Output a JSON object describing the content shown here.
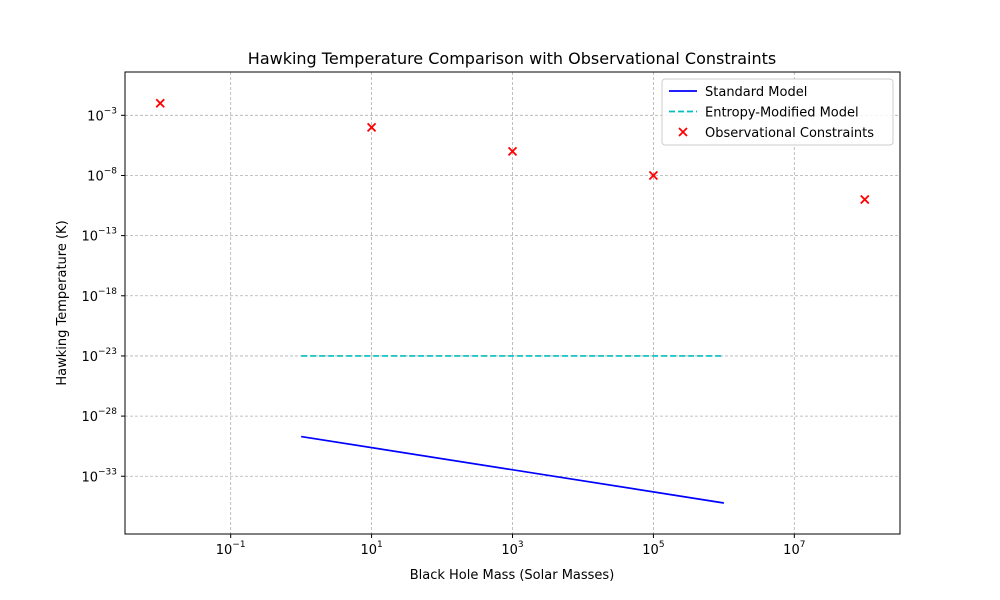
{
  "chart_data": {
    "type": "line",
    "title": "Hawking Temperature Comparison with Observational Constraints",
    "xlabel": "Black Hole Mass (Solar Masses)",
    "ylabel": "Hawking Temperature (K)",
    "x_scale": "log",
    "y_scale": "log",
    "xlim_log10": [
      -2.5,
      8.5
    ],
    "ylim_log10": [
      -37.8,
      0.6
    ],
    "x_ticks": [
      {
        "base": "10",
        "exp": "−1",
        "log": -1
      },
      {
        "base": "10",
        "exp": "1",
        "log": 1
      },
      {
        "base": "10",
        "exp": "3",
        "log": 3
      },
      {
        "base": "10",
        "exp": "5",
        "log": 5
      },
      {
        "base": "10",
        "exp": "7",
        "log": 7
      }
    ],
    "y_ticks": [
      {
        "base": "10",
        "exp": "−3",
        "log": -3
      },
      {
        "base": "10",
        "exp": "−8",
        "log": -8
      },
      {
        "base": "10",
        "exp": "−13",
        "log": -13
      },
      {
        "base": "10",
        "exp": "−18",
        "log": -18
      },
      {
        "base": "10",
        "exp": "−23",
        "log": -23
      },
      {
        "base": "10",
        "exp": "−28",
        "log": -28
      },
      {
        "base": "10",
        "exp": "−33",
        "log": -33
      }
    ],
    "grid": true,
    "legend_position": "top-right",
    "series": [
      {
        "name": "Standard Model",
        "kind": "line",
        "style": "solid",
        "color": "#0000ff",
        "x": [
          1,
          1000000
        ],
        "y": [
          2e-30,
          6e-36
        ]
      },
      {
        "name": "Entropy-Modified Model",
        "kind": "line",
        "style": "dashed",
        "color": "#00bfbf",
        "x": [
          1,
          1000000
        ],
        "y": [
          1e-23,
          1e-23
        ]
      },
      {
        "name": "Observational Constraints",
        "kind": "scatter",
        "marker": "x",
        "color": "#ff0000",
        "x": [
          0.01,
          10,
          1000,
          100000,
          100000000
        ],
        "y": [
          0.01,
          0.0001,
          1e-06,
          1e-08,
          1e-10
        ]
      }
    ]
  }
}
